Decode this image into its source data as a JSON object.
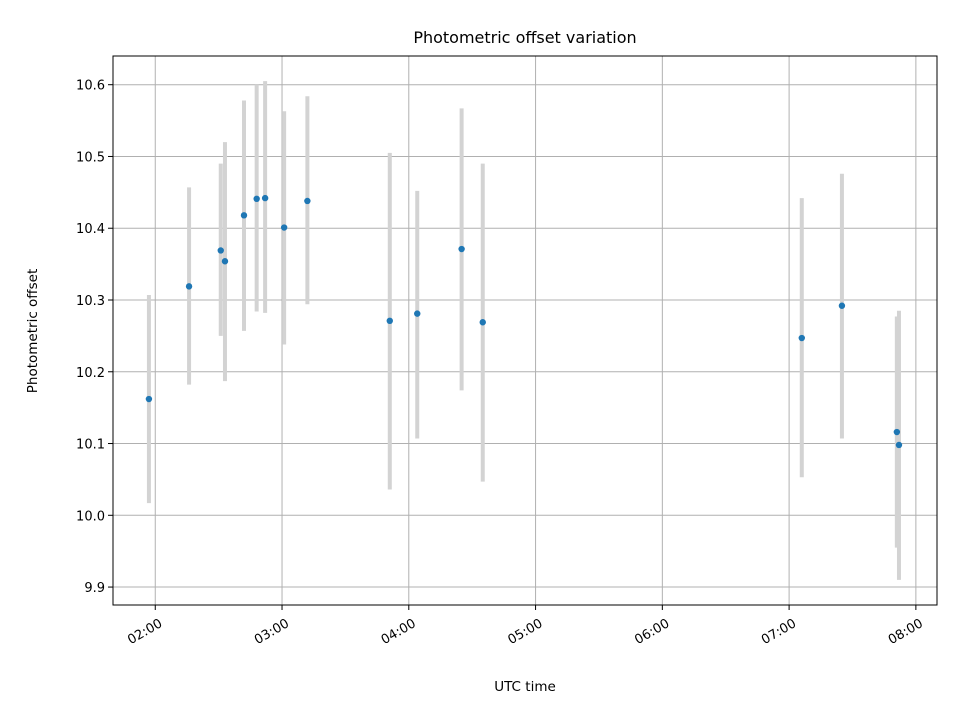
{
  "chart_data": {
    "type": "scatter",
    "title": "Photometric offset variation",
    "xlabel": "UTC time",
    "ylabel": "Photometric offset",
    "xlim": [
      "01:40",
      "08:10"
    ],
    "ylim": [
      9.875,
      10.64
    ],
    "x_ticks": [
      "02:00",
      "03:00",
      "04:00",
      "05:00",
      "06:00",
      "07:00",
      "08:00"
    ],
    "y_ticks": [
      "9.9",
      "10.0",
      "10.1",
      "10.2",
      "10.3",
      "10.4",
      "10.5",
      "10.6"
    ],
    "grid": true,
    "colors": {
      "points": "#1f77b4",
      "error_bars": "#d3d3d3",
      "grid": "#b0b0b0"
    },
    "points": [
      {
        "x": "01:57",
        "y": 10.162,
        "ylow": 10.017,
        "yhigh": 10.307
      },
      {
        "x": "02:16",
        "y": 10.319,
        "ylow": 10.182,
        "yhigh": 10.457
      },
      {
        "x": "02:31",
        "y": 10.369,
        "ylow": 10.25,
        "yhigh": 10.49
      },
      {
        "x": "02:33",
        "y": 10.354,
        "ylow": 10.187,
        "yhigh": 10.52
      },
      {
        "x": "02:42",
        "y": 10.418,
        "ylow": 10.257,
        "yhigh": 10.578
      },
      {
        "x": "02:48",
        "y": 10.441,
        "ylow": 10.284,
        "yhigh": 10.6
      },
      {
        "x": "02:52",
        "y": 10.442,
        "ylow": 10.282,
        "yhigh": 10.605
      },
      {
        "x": "03:01",
        "y": 10.401,
        "ylow": 10.238,
        "yhigh": 10.563
      },
      {
        "x": "03:12",
        "y": 10.438,
        "ylow": 10.294,
        "yhigh": 10.584
      },
      {
        "x": "03:51",
        "y": 10.271,
        "ylow": 10.036,
        "yhigh": 10.505
      },
      {
        "x": "04:04",
        "y": 10.281,
        "ylow": 10.107,
        "yhigh": 10.452
      },
      {
        "x": "04:25",
        "y": 10.371,
        "ylow": 10.174,
        "yhigh": 10.567
      },
      {
        "x": "04:35",
        "y": 10.269,
        "ylow": 10.047,
        "yhigh": 10.49
      },
      {
        "x": "07:06",
        "y": 10.247,
        "ylow": 10.053,
        "yhigh": 10.442
      },
      {
        "x": "07:25",
        "y": 10.292,
        "ylow": 10.107,
        "yhigh": 10.476
      },
      {
        "x": "07:51",
        "y": 10.116,
        "ylow": 9.955,
        "yhigh": 10.277
      },
      {
        "x": "07:52",
        "y": 10.098,
        "ylow": 9.91,
        "yhigh": 10.285
      }
    ]
  }
}
